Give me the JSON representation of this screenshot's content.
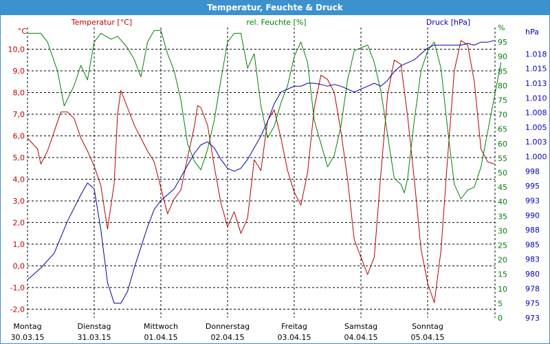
{
  "window": {
    "title": "Temperatur, Feuchte & Druck"
  },
  "chart_data": {
    "type": "line",
    "title": "Temperatur, Feuchte & Druck",
    "axes": {
      "temp": {
        "label": "Temperatur [°C]",
        "unit": "°C",
        "range": [
          -2.4,
          11.0
        ],
        "ticks": [
          "-2,0",
          "-1,0",
          "0,0",
          "1,0",
          "2,0",
          "3,0",
          "4,0",
          "5,0",
          "6,0",
          "7,0",
          "8,0",
          "9,0",
          "10,0"
        ],
        "color": "#c00000"
      },
      "hum": {
        "label": "rel. Feuchte [%]",
        "unit": "%",
        "range": [
          0,
          100
        ],
        "ticks": [
          "0",
          "5",
          "10",
          "15",
          "20",
          "25",
          "30",
          "35",
          "40",
          "45",
          "50",
          "55",
          "60",
          "65",
          "70",
          "75",
          "80",
          "85",
          "90",
          "95",
          "%"
        ],
        "color": "#008000"
      },
      "press": {
        "label": "Druck [hPa]",
        "unit": "hPa",
        "range": [
          973,
          1022.5
        ],
        "ticks": [
          "973",
          "975",
          "978",
          "980",
          "983",
          "985",
          "988",
          "990",
          "993",
          "995",
          "998",
          "1.000",
          "1.003",
          "1.005",
          "1.008",
          "1.010",
          "1.013",
          "1.015",
          "1.018"
        ],
        "color": "#0000c0"
      }
    },
    "x_categories": [
      {
        "day": "Montag",
        "date": "30.03.15"
      },
      {
        "day": "Dienstag",
        "date": "31.03.15"
      },
      {
        "day": "Mittwoch",
        "date": "01.04.15"
      },
      {
        "day": "Donnerstag",
        "date": "02.04.15"
      },
      {
        "day": "Freitag",
        "date": "03.04.15"
      },
      {
        "day": "Samstag",
        "date": "04.04.15"
      },
      {
        "day": "Sonntag",
        "date": "05.04.15"
      }
    ],
    "x_range_days": [
      0,
      7.2
    ],
    "grid": true,
    "series": [
      {
        "name": "Temperatur [°C]",
        "axis": "temp",
        "color": "#b00000",
        "points": [
          [
            0.0,
            5.9
          ],
          [
            0.15,
            5.4
          ],
          [
            0.2,
            4.7
          ],
          [
            0.3,
            5.3
          ],
          [
            0.4,
            6.2
          ],
          [
            0.5,
            7.1
          ],
          [
            0.6,
            7.1
          ],
          [
            0.7,
            6.8
          ],
          [
            0.8,
            5.9
          ],
          [
            0.9,
            5.3
          ],
          [
            1.0,
            4.6
          ],
          [
            1.1,
            3.7
          ],
          [
            1.2,
            1.7
          ],
          [
            1.3,
            3.8
          ],
          [
            1.35,
            7.0
          ],
          [
            1.4,
            8.1
          ],
          [
            1.5,
            7.3
          ],
          [
            1.6,
            6.5
          ],
          [
            1.7,
            5.9
          ],
          [
            1.8,
            5.3
          ],
          [
            1.9,
            4.8
          ],
          [
            2.0,
            3.6
          ],
          [
            2.1,
            2.4
          ],
          [
            2.2,
            3.1
          ],
          [
            2.3,
            3.5
          ],
          [
            2.4,
            5.0
          ],
          [
            2.5,
            6.4
          ],
          [
            2.55,
            7.4
          ],
          [
            2.6,
            7.3
          ],
          [
            2.7,
            6.5
          ],
          [
            2.8,
            4.6
          ],
          [
            2.9,
            2.9
          ],
          [
            3.0,
            1.8
          ],
          [
            3.1,
            2.5
          ],
          [
            3.2,
            1.5
          ],
          [
            3.3,
            2.2
          ],
          [
            3.4,
            4.9
          ],
          [
            3.5,
            4.4
          ],
          [
            3.6,
            6.7
          ],
          [
            3.7,
            7.2
          ],
          [
            3.8,
            5.9
          ],
          [
            3.9,
            4.4
          ],
          [
            4.0,
            3.4
          ],
          [
            4.1,
            2.8
          ],
          [
            4.2,
            4.3
          ],
          [
            4.3,
            7.3
          ],
          [
            4.4,
            8.8
          ],
          [
            4.5,
            8.6
          ],
          [
            4.6,
            8.0
          ],
          [
            4.7,
            6.2
          ],
          [
            4.8,
            4.0
          ],
          [
            4.9,
            1.2
          ],
          [
            5.0,
            0.4
          ],
          [
            5.1,
            -0.4
          ],
          [
            5.2,
            0.4
          ],
          [
            5.3,
            4.3
          ],
          [
            5.4,
            7.9
          ],
          [
            5.5,
            9.5
          ],
          [
            5.6,
            9.3
          ],
          [
            5.7,
            6.9
          ],
          [
            5.8,
            4.0
          ],
          [
            5.9,
            0.8
          ],
          [
            6.0,
            -0.8
          ],
          [
            6.1,
            -1.7
          ],
          [
            6.2,
            0.7
          ],
          [
            6.3,
            5.0
          ],
          [
            6.4,
            9.0
          ],
          [
            6.5,
            10.4
          ],
          [
            6.6,
            10.2
          ],
          [
            6.7,
            8.5
          ],
          [
            6.8,
            5.4
          ],
          [
            6.9,
            4.8
          ],
          [
            7.0,
            4.7
          ]
        ]
      },
      {
        "name": "rel. Feuchte [%]",
        "axis": "hum",
        "color": "#008000",
        "points": [
          [
            0.0,
            98
          ],
          [
            0.2,
            98
          ],
          [
            0.3,
            95
          ],
          [
            0.45,
            85
          ],
          [
            0.55,
            73
          ],
          [
            0.7,
            80
          ],
          [
            0.8,
            87
          ],
          [
            0.9,
            82
          ],
          [
            1.0,
            95
          ],
          [
            1.1,
            98
          ],
          [
            1.25,
            96
          ],
          [
            1.35,
            97
          ],
          [
            1.5,
            93
          ],
          [
            1.6,
            89
          ],
          [
            1.7,
            83
          ],
          [
            1.8,
            95
          ],
          [
            1.9,
            99
          ],
          [
            2.0,
            99
          ],
          [
            2.1,
            91
          ],
          [
            2.2,
            85
          ],
          [
            2.3,
            75
          ],
          [
            2.4,
            60
          ],
          [
            2.5,
            54
          ],
          [
            2.6,
            51
          ],
          [
            2.7,
            58
          ],
          [
            2.8,
            68
          ],
          [
            2.9,
            82
          ],
          [
            3.0,
            95
          ],
          [
            3.1,
            98
          ],
          [
            3.2,
            98
          ],
          [
            3.3,
            86
          ],
          [
            3.4,
            91
          ],
          [
            3.5,
            73
          ],
          [
            3.6,
            62
          ],
          [
            3.7,
            66
          ],
          [
            3.8,
            74
          ],
          [
            3.9,
            80
          ],
          [
            4.0,
            90
          ],
          [
            4.1,
            95
          ],
          [
            4.2,
            88
          ],
          [
            4.3,
            68
          ],
          [
            4.4,
            60
          ],
          [
            4.5,
            52
          ],
          [
            4.6,
            56
          ],
          [
            4.7,
            66
          ],
          [
            4.8,
            82
          ],
          [
            4.9,
            92
          ],
          [
            5.0,
            93
          ],
          [
            5.1,
            94
          ],
          [
            5.2,
            88
          ],
          [
            5.3,
            78
          ],
          [
            5.4,
            63
          ],
          [
            5.5,
            48
          ],
          [
            5.6,
            46
          ],
          [
            5.65,
            43
          ],
          [
            5.7,
            48
          ],
          [
            5.8,
            68
          ],
          [
            5.9,
            85
          ],
          [
            6.0,
            92
          ],
          [
            6.1,
            95
          ],
          [
            6.2,
            86
          ],
          [
            6.3,
            65
          ],
          [
            6.4,
            46
          ],
          [
            6.5,
            41
          ],
          [
            6.6,
            44
          ],
          [
            6.7,
            45
          ],
          [
            6.8,
            52
          ],
          [
            6.9,
            64
          ],
          [
            7.0,
            76
          ],
          [
            7.1,
            88
          ]
        ]
      },
      {
        "name": "Druck [hPa]",
        "axis": "press",
        "color": "#0000a0",
        "points": [
          [
            0.0,
            979.5
          ],
          [
            0.2,
            981.5
          ],
          [
            0.4,
            984.0
          ],
          [
            0.6,
            989.5
          ],
          [
            0.8,
            994.0
          ],
          [
            0.9,
            996.0
          ],
          [
            1.0,
            995.0
          ],
          [
            1.1,
            988.0
          ],
          [
            1.2,
            979.0
          ],
          [
            1.3,
            975.5
          ],
          [
            1.4,
            975.5
          ],
          [
            1.5,
            977.5
          ],
          [
            1.6,
            981.5
          ],
          [
            1.7,
            985.0
          ],
          [
            1.8,
            988.5
          ],
          [
            1.9,
            991.5
          ],
          [
            2.0,
            993.0
          ],
          [
            2.1,
            994.0
          ],
          [
            2.2,
            995.0
          ],
          [
            2.3,
            997.0
          ],
          [
            2.4,
            999.0
          ],
          [
            2.5,
            1001.0
          ],
          [
            2.6,
            1002.5
          ],
          [
            2.7,
            1003.0
          ],
          [
            2.8,
            1002.0
          ],
          [
            2.9,
            1000.0
          ],
          [
            3.0,
            998.5
          ],
          [
            3.1,
            998.0
          ],
          [
            3.2,
            998.5
          ],
          [
            3.3,
            1000.0
          ],
          [
            3.4,
            1002.0
          ],
          [
            3.5,
            1004.0
          ],
          [
            3.6,
            1006.5
          ],
          [
            3.7,
            1009.5
          ],
          [
            3.8,
            1011.5
          ],
          [
            3.9,
            1012.0
          ],
          [
            4.0,
            1012.5
          ],
          [
            4.1,
            1012.5
          ],
          [
            4.2,
            1013.0
          ],
          [
            4.3,
            1013.0
          ],
          [
            4.4,
            1012.8
          ],
          [
            4.5,
            1012.5
          ],
          [
            4.6,
            1012.8
          ],
          [
            4.7,
            1012.5
          ],
          [
            4.8,
            1012.0
          ],
          [
            4.9,
            1011.5
          ],
          [
            5.0,
            1012.0
          ],
          [
            5.1,
            1012.5
          ],
          [
            5.2,
            1013.0
          ],
          [
            5.3,
            1012.5
          ],
          [
            5.4,
            1013.5
          ],
          [
            5.5,
            1015.0
          ],
          [
            5.6,
            1016.0
          ],
          [
            5.7,
            1016.5
          ],
          [
            5.8,
            1017.0
          ],
          [
            5.9,
            1018.0
          ],
          [
            6.0,
            1019.0
          ],
          [
            6.1,
            1019.5
          ],
          [
            6.2,
            1019.5
          ],
          [
            6.3,
            1019.5
          ],
          [
            6.4,
            1019.5
          ],
          [
            6.5,
            1019.5
          ],
          [
            6.6,
            1019.8
          ],
          [
            6.7,
            1019.5
          ],
          [
            6.8,
            1020.0
          ],
          [
            6.9,
            1020.0
          ],
          [
            7.0,
            1020.3
          ]
        ]
      }
    ]
  }
}
